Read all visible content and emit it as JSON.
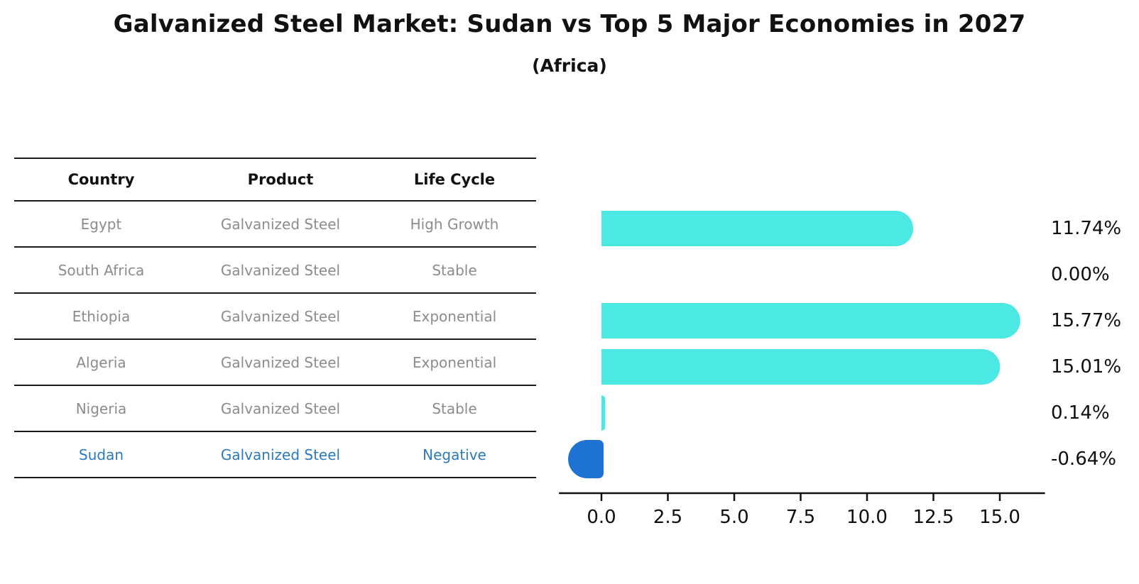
{
  "title": "Galvanized Steel Market: Sudan vs Top 5 Major Economies in 2027",
  "subtitle": "(Africa)",
  "table": {
    "headers": {
      "country": "Country",
      "product": "Product",
      "life_cycle": "Life Cycle"
    },
    "rows": [
      {
        "country": "Egypt",
        "product": "Galvanized Steel",
        "life_cycle": "High Growth",
        "highlight": false
      },
      {
        "country": "South Africa",
        "product": "Galvanized Steel",
        "life_cycle": "Stable",
        "highlight": false
      },
      {
        "country": "Ethiopia",
        "product": "Galvanized Steel",
        "life_cycle": "Exponential",
        "highlight": false
      },
      {
        "country": "Algeria",
        "product": "Galvanized Steel",
        "life_cycle": "Exponential",
        "highlight": false
      },
      {
        "country": "Nigeria",
        "product": "Galvanized Steel",
        "life_cycle": "Stable",
        "highlight": false
      },
      {
        "country": "Sudan",
        "product": "Galvanized Steel",
        "life_cycle": "Negative",
        "highlight": true
      }
    ]
  },
  "chart_data": {
    "type": "bar",
    "orientation": "horizontal",
    "title": "Galvanized Steel Market: Sudan vs Top 5 Major Economies in 2027",
    "subtitle": "(Africa)",
    "categories": [
      "Egypt",
      "South Africa",
      "Ethiopia",
      "Algeria",
      "Nigeria",
      "Sudan"
    ],
    "values": [
      11.74,
      0.0,
      15.77,
      15.01,
      0.14,
      -0.64
    ],
    "value_labels": [
      "11.74%",
      "0.00%",
      "15.77%",
      "15.01%",
      "0.14%",
      "-0.64%"
    ],
    "unit": "%",
    "xlim": [
      -1.6,
      16.7
    ],
    "x_ticks": [
      0.0,
      2.5,
      5.0,
      7.5,
      10.0,
      12.5,
      15.0
    ],
    "x_tick_labels": [
      "0.0",
      "2.5",
      "5.0",
      "7.5",
      "10.0",
      "12.5",
      "15.0"
    ],
    "grid": false,
    "legend": false
  },
  "colors": {
    "bar_positive": "#4ce8e3",
    "bar_negative": "#1e73d2",
    "highlight_text": "#2b7abf",
    "axis_line": "#111111",
    "tick_label": "#0f0f0f",
    "value_label": "#0f0f0f",
    "table_line": "#1a1a1a",
    "table_text": "#8c8c8c",
    "header_text": "#111111"
  }
}
